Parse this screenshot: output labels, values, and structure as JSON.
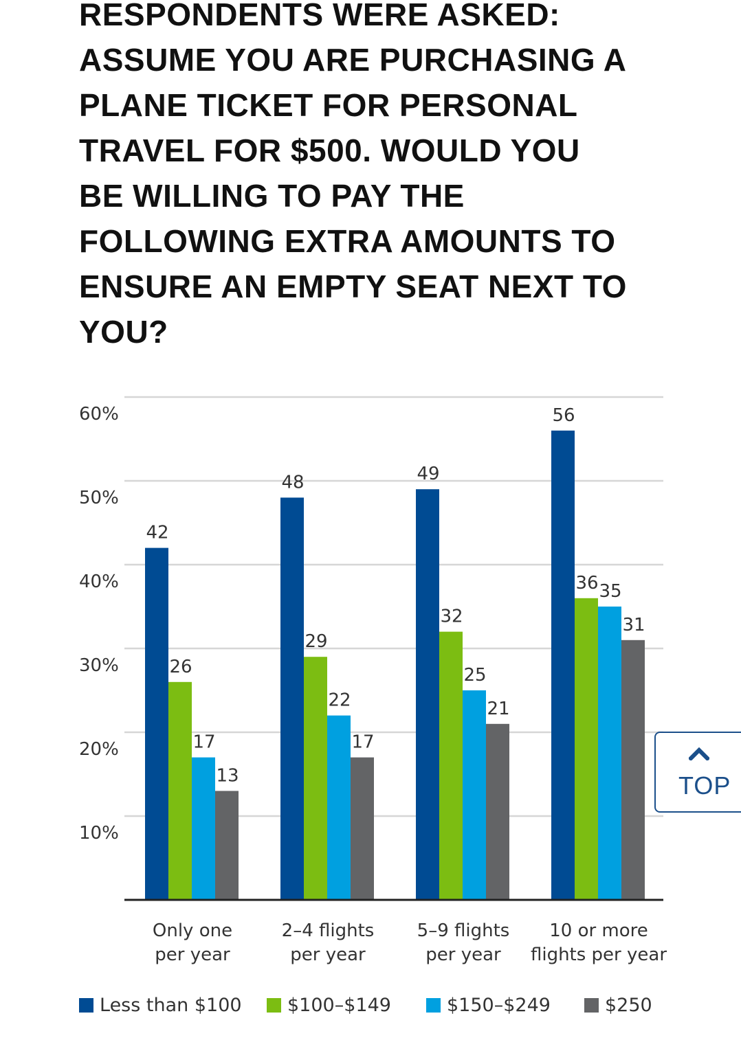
{
  "chart_data": {
    "type": "bar",
    "title": "RESPONDENTS WERE ASKED: ASSUME YOU ARE PURCHASING A PLANE TICKET FOR PERSONAL TRAVEL FOR $500. WOULD YOU BE WILLING TO PAY THE FOLLOWING EXTRA AMOUNTS TO ENSURE AN EMPTY SEAT NEXT TO YOU?",
    "categories": [
      [
        "Only one",
        "per year"
      ],
      [
        "2–4 flights",
        "per year"
      ],
      [
        "5–9 flights",
        "per year"
      ],
      [
        "10 or more",
        "flights per year"
      ]
    ],
    "series": [
      {
        "name": "Less than $100",
        "color": "#004b93",
        "values": [
          42,
          48,
          49,
          56
        ]
      },
      {
        "name": "$100–$149",
        "color": "#7cbd12",
        "values": [
          26,
          29,
          32,
          36
        ]
      },
      {
        "name": "$150–$249",
        "color": "#00a0e0",
        "values": [
          17,
          22,
          25,
          35
        ]
      },
      {
        "name": "$250",
        "color": "#636466",
        "values": [
          13,
          17,
          21,
          31
        ]
      }
    ],
    "y_ticks": [
      {
        "value": 10,
        "label": "10%"
      },
      {
        "value": 20,
        "label": "20%"
      },
      {
        "value": 30,
        "label": "30%"
      },
      {
        "value": 40,
        "label": "40%"
      },
      {
        "value": 50,
        "label": "50%"
      },
      {
        "value": 60,
        "label": "60%"
      }
    ],
    "ylim": [
      0,
      60
    ],
    "xlabel": "",
    "ylabel": "",
    "grid": true,
    "legend_position": "bottom"
  },
  "top_button": {
    "label": "TOP",
    "icon": "chevron-up-icon",
    "color": "#1b4f8a"
  }
}
